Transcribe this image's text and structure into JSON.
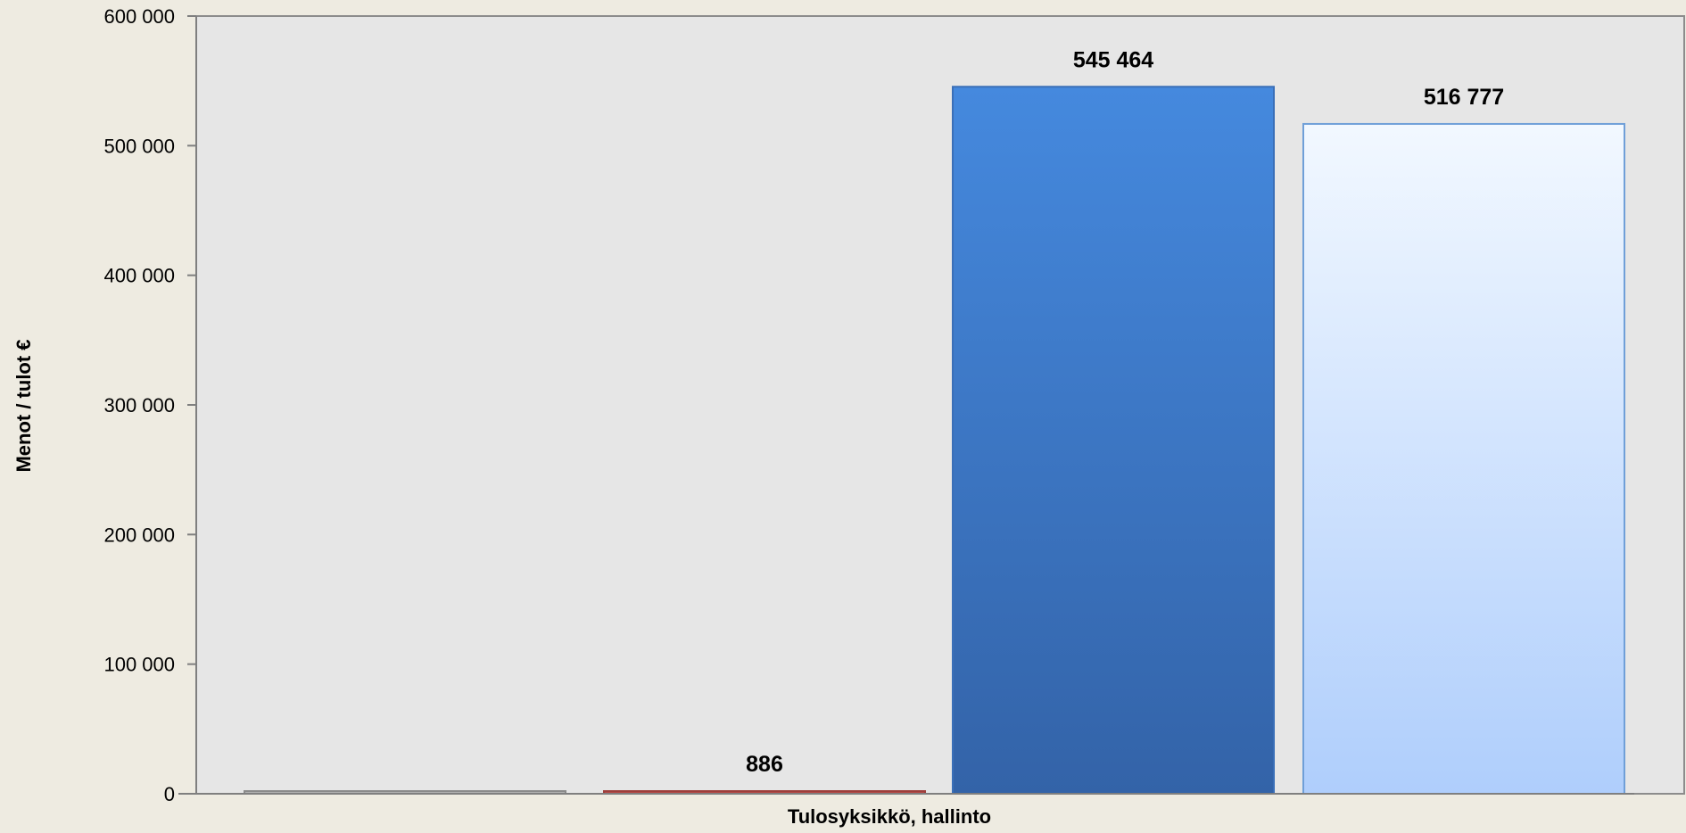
{
  "chart_data": {
    "type": "bar",
    "title": "",
    "xlabel": "Tulosyksikkö, hallinto",
    "ylabel": "Menot / tulot €",
    "ylim": [
      0,
      600000
    ],
    "yticks": [
      0,
      100000,
      200000,
      300000,
      400000,
      500000,
      600000
    ],
    "ytick_labels": [
      "0",
      "100 000",
      "200 000",
      "300 000",
      "400 000",
      "500 000",
      "600 000"
    ],
    "categories": [
      "Tulosyksikkö, hallinto"
    ],
    "grid": false,
    "legend": "none",
    "series": [
      {
        "values": [
          0
        ],
        "data_label": "",
        "color": "#9a9a9a",
        "gradient": [
          "#b0b0b0",
          "#b0b0b0"
        ],
        "stroke": "#8a8a8a"
      },
      {
        "values": [
          886
        ],
        "data_label": "886",
        "color": "#c0504d",
        "gradient": [
          "#c0504d",
          "#a8423f"
        ],
        "stroke": "#9e3e3b"
      },
      {
        "values": [
          545464
        ],
        "data_label": "545 464",
        "color": "#3f7fd6",
        "gradient": [
          "#4589de",
          "#3363a8"
        ],
        "stroke": "#3a6fb8"
      },
      {
        "values": [
          516777
        ],
        "data_label": "516 777",
        "color": "#c8ddfa",
        "gradient": [
          "#f2f8ff",
          "#afcefc"
        ],
        "stroke": "#6f9fd8"
      }
    ],
    "plot_background": "#e6e6e6"
  }
}
